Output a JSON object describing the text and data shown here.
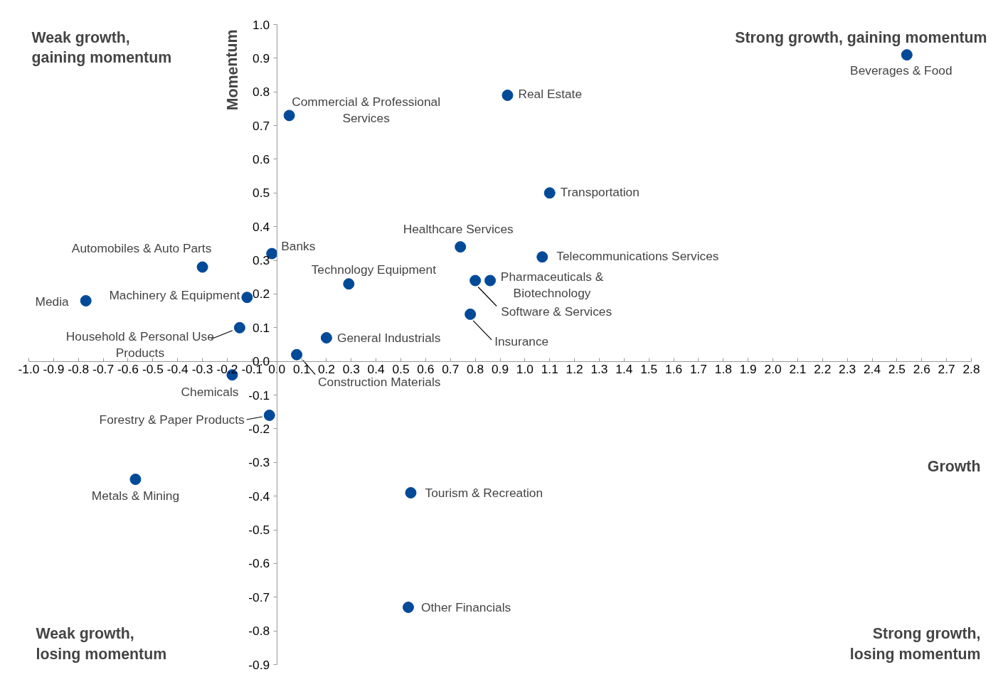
{
  "chart_data": {
    "type": "scatter",
    "xlabel": "Growth",
    "ylabel": "Momentum",
    "xlim": [
      -1.0,
      2.8
    ],
    "ylim": [
      -0.9,
      1.0
    ],
    "xticks": [
      {
        "value": -1.0,
        "label": "-1.0"
      },
      -0.9,
      -0.8,
      -0.7,
      -0.6,
      -0.5,
      -0.4,
      -0.3,
      -0.2,
      -0.1,
      {
        "value": 0,
        "label": "0.0"
      },
      0.1,
      0.2,
      0.3,
      0.4,
      0.5,
      0.6,
      0.7,
      0.8,
      0.9,
      {
        "value": 1.0,
        "label": "1.0"
      },
      1.1,
      1.2,
      1.3,
      1.4,
      1.5,
      1.6,
      1.7,
      1.8,
      1.9,
      {
        "value": 2.0,
        "label": "2.0"
      },
      2.1,
      2.2,
      2.3,
      2.4,
      2.5,
      2.6,
      2.7,
      2.8
    ],
    "yticks": [
      {
        "value": -0.9,
        "label": "-0.9"
      },
      -0.8,
      -0.7,
      -0.6,
      -0.5,
      -0.4,
      -0.3,
      -0.2,
      -0.1,
      {
        "value": 0,
        "label": "0.0"
      },
      0.1,
      0.2,
      0.3,
      0.4,
      0.5,
      0.6,
      0.7,
      0.8,
      0.9,
      {
        "value": 1.0,
        "label": "1.0"
      }
    ],
    "grid": false,
    "marker": "circle",
    "series": [
      {
        "color": "#004a98",
        "x": [
          2.54,
          0.93,
          0.05,
          1.1,
          0.74,
          1.07,
          -0.02,
          -0.3,
          0.29,
          0.86,
          0.8,
          0.78,
          -0.77,
          -0.12,
          -0.15,
          0.2,
          0.08,
          -0.18,
          -0.03,
          -0.57,
          0.54,
          0.53
        ],
        "values": [
          0.91,
          0.79,
          0.73,
          0.5,
          0.34,
          0.31,
          0.32,
          0.28,
          0.23,
          0.24,
          0.24,
          0.14,
          0.18,
          0.19,
          0.1,
          0.07,
          0.02,
          -0.04,
          -0.16,
          -0.35,
          -0.39,
          -0.73
        ]
      }
    ],
    "annotations": [
      {
        "text": "Beverages & Food",
        "x": 2.54,
        "y": 0.91
      },
      {
        "text": "Real Estate",
        "x": 0.93,
        "y": 0.79
      },
      {
        "text": "Commercial & Professional\nServices",
        "x": 0.05,
        "y": 0.73
      },
      {
        "text": "Transportation",
        "x": 1.1,
        "y": 0.5
      },
      {
        "text": "Healthcare Services",
        "x": 0.74,
        "y": 0.34
      },
      {
        "text": "Telecommunications Services",
        "x": 1.07,
        "y": 0.31
      },
      {
        "text": "Banks",
        "x": -0.02,
        "y": 0.32
      },
      {
        "text": "Automobiles & Auto Parts",
        "x": -0.3,
        "y": 0.28
      },
      {
        "text": "Technology Equipment",
        "x": 0.29,
        "y": 0.23
      },
      {
        "text": "Pharmaceuticals &\nBiotechnology",
        "x": 0.86,
        "y": 0.24
      },
      {
        "text": "Software & Services",
        "x": 0.8,
        "y": 0.24
      },
      {
        "text": "Insurance",
        "x": 0.78,
        "y": 0.14
      },
      {
        "text": "Media",
        "x": -0.77,
        "y": 0.18
      },
      {
        "text": "Machinery & Equipment",
        "x": -0.12,
        "y": 0.19
      },
      {
        "text": "Household & Personal Use\nProducts",
        "x": -0.15,
        "y": 0.1
      },
      {
        "text": "General Industrials",
        "x": 0.2,
        "y": 0.07
      },
      {
        "text": "Construction Materials",
        "x": 0.08,
        "y": 0.02
      },
      {
        "text": "Chemicals",
        "x": -0.18,
        "y": -0.04
      },
      {
        "text": "Forestry & Paper Products",
        "x": -0.03,
        "y": -0.16
      },
      {
        "text": "Metals & Mining",
        "x": -0.57,
        "y": -0.35
      },
      {
        "text": "Tourism & Recreation",
        "x": 0.54,
        "y": -0.39
      },
      {
        "text": "Other Financials",
        "x": 0.53,
        "y": -0.73
      },
      "Weak growth,\ngaining momentum",
      "Strong growth, gaining momentum",
      "Weak growth,\nlosing momentum",
      "Strong growth,\nlosing momentum"
    ]
  }
}
